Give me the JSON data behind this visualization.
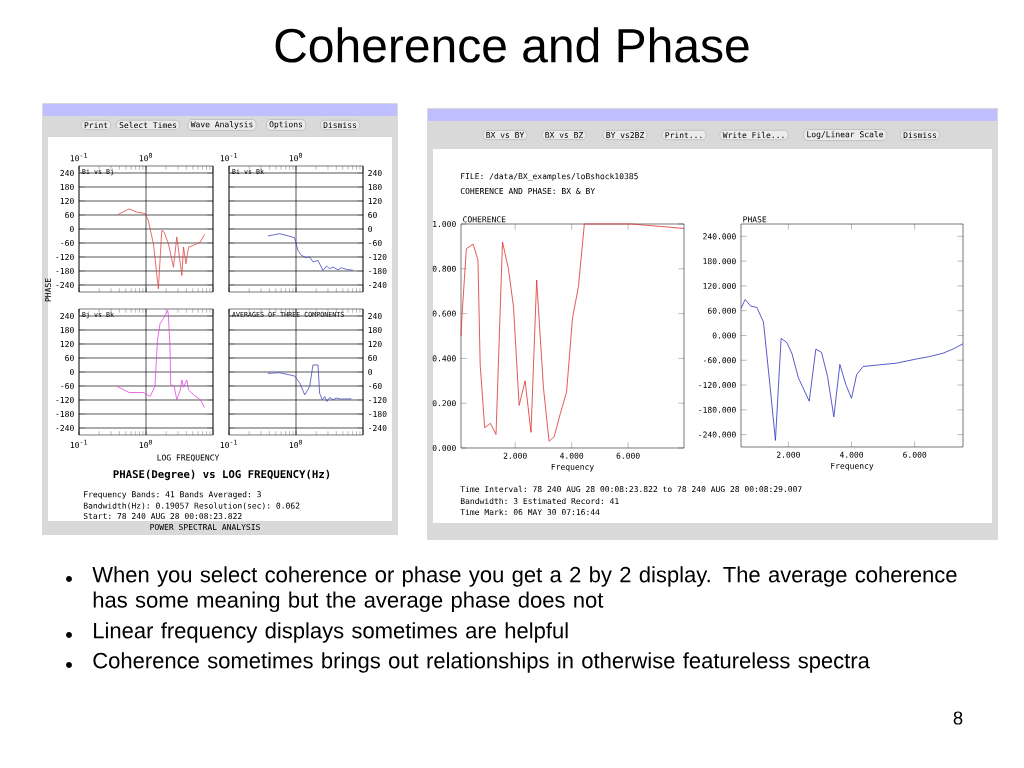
{
  "chart_data": [
    {
      "type": "line",
      "title": "Bi vs Bj",
      "log": "x",
      "grid": true,
      "color": "#e04848",
      "xlim": [
        0.1,
        10
      ],
      "ylim": [
        -270,
        270
      ],
      "xticks": [
        {
          "value": 0.1,
          "label": "10$^{-1}$"
        },
        {
          "value": 1,
          "label": "10$^{0}$"
        },
        {
          "value": 10,
          "label": null
        }
      ],
      "yticks": [
        -240,
        -180,
        -120,
        -60,
        0,
        60,
        120,
        180,
        240
      ],
      "x": [
        0.38,
        0.56,
        0.72,
        0.97,
        1.08,
        1.29,
        1.53,
        1.72,
        1.86,
        2.16,
        2.57,
        2.88,
        3.43,
        3.63,
        3.94,
        4.32,
        5.13,
        6.46,
        7.5
      ],
      "values": [
        62,
        86,
        73,
        66,
        37,
        -63,
        -256,
        -6,
        -13,
        -63,
        -164,
        -34,
        -199,
        -77,
        -149,
        -77,
        -70,
        -56,
        -23
      ]
    },
    {
      "type": "line",
      "title": "Bi vs Bk",
      "log": "x",
      "grid": true,
      "color": "#4848c0",
      "xlim": [
        0.1,
        10
      ],
      "ylim": [
        -270,
        270
      ],
      "xticks": [
        {
          "value": 0.1,
          "label": "10$^{-1}$"
        },
        {
          "value": 1,
          "label": "10$^{0}$"
        },
        {
          "value": 10,
          "label": null
        }
      ],
      "yticks": [
        -240,
        -180,
        -120,
        -60,
        0,
        60,
        120,
        180,
        240
      ],
      "x": [
        0.38,
        0.57,
        0.95,
        1.07,
        1.2,
        1.43,
        1.6,
        1.79,
        2.13,
        2.53,
        2.84,
        3.18,
        3.57,
        4.24,
        4.75,
        5.64,
        7.1
      ],
      "values": [
        -30,
        -20,
        -37,
        -92,
        -113,
        -123,
        -120,
        -141,
        -135,
        -178,
        -159,
        -170,
        -163,
        -175,
        -166,
        -173,
        -177
      ]
    },
    {
      "type": "line",
      "title": "Bj vs Bk",
      "log": "x",
      "grid": true,
      "color": "#e048e0",
      "xlim": [
        0.1,
        10
      ],
      "ylim": [
        -270,
        270
      ],
      "xticks": [
        {
          "value": 0.1,
          "label": "10$^{-1}$"
        },
        {
          "value": 1,
          "label": "10$^{0}$"
        },
        {
          "value": 10,
          "label": null
        }
      ],
      "yticks": [
        -240,
        -180,
        -120,
        -60,
        0,
        60,
        120,
        180,
        240
      ],
      "x": [
        0.37,
        0.56,
        0.91,
        1.15,
        1.36,
        1.48,
        1.62,
        1.82,
        2.11,
        2.16,
        2.29,
        2.34,
        2.63,
        2.88,
        3.24,
        3.43,
        3.63,
        4.07,
        4.32,
        5.13,
        6.46,
        7.5
      ],
      "values": [
        -62,
        -88,
        -88,
        -105,
        -62,
        136,
        207,
        229,
        264,
        243,
        94,
        -55,
        -60,
        -119,
        -77,
        -34,
        -65,
        -34,
        -77,
        -98,
        -119,
        -152
      ]
    },
    {
      "type": "line",
      "title": "AVERAGES OF THREE COMPONENTS",
      "log": "x",
      "grid": true,
      "color": "#4848c0",
      "xlim": [
        0.1,
        10
      ],
      "ylim": [
        -270,
        270
      ],
      "xticks": [
        {
          "value": 0.1,
          "label": "10$^{-1}$"
        },
        {
          "value": 1,
          "label": "10$^{0}$"
        },
        {
          "value": 10,
          "label": null
        }
      ],
      "yticks": [
        -240,
        -180,
        -120,
        -60,
        0,
        60,
        120,
        180,
        240
      ],
      "x": [
        0.38,
        0.57,
        0.95,
        1.14,
        1.35,
        1.6,
        1.79,
        2.13,
        2.25,
        2.47,
        2.68,
        2.9,
        3.18,
        3.57,
        4.0,
        4.75,
        6.7
      ],
      "values": [
        -6,
        -3,
        -17,
        -48,
        -98,
        -62,
        30,
        30,
        -91,
        -119,
        -105,
        -126,
        -109,
        -119,
        -112,
        -116,
        -115
      ]
    },
    {
      "type": "line",
      "title": "COHERENCE",
      "xlabel": "Frequency",
      "color": "#e03030",
      "xlim": [
        0.08,
        7.98
      ],
      "ylim": [
        0,
        1
      ],
      "xticks": [
        {
          "value": 2,
          "label": "2.000"
        },
        {
          "value": 4,
          "label": "4.000"
        },
        {
          "value": 6,
          "label": "6.000"
        }
      ],
      "yticks": [
        {
          "value": 0,
          "label": "0.000"
        },
        {
          "value": 0.2,
          "label": "0.200"
        },
        {
          "value": 0.4,
          "label": "0.400"
        },
        {
          "value": 0.6,
          "label": "0.600"
        },
        {
          "value": 0.8,
          "label": "0.800"
        },
        {
          "value": 1,
          "label": "1.000"
        }
      ],
      "x": [
        0.08,
        0.12,
        0.27,
        0.51,
        0.68,
        0.76,
        0.92,
        1.12,
        1.32,
        1.55,
        1.76,
        1.94,
        2.14,
        2.35,
        2.56,
        2.76,
        3.0,
        3.2,
        3.38,
        3.59,
        3.82,
        4.03,
        4.24,
        4.45,
        6.12,
        7.06,
        7.98
      ],
      "values": [
        0.5,
        0.6,
        0.89,
        0.91,
        0.84,
        0.37,
        0.09,
        0.11,
        0.06,
        0.92,
        0.8,
        0.63,
        0.19,
        0.3,
        0.07,
        0.75,
        0.27,
        0.03,
        0.05,
        0.15,
        0.25,
        0.58,
        0.72,
        1.0,
        1.0,
        0.99,
        0.98
      ]
    },
    {
      "type": "line",
      "title": "PHASE",
      "xlabel": "Frequency",
      "color": "#3030c0",
      "xlim": [
        0.5,
        7.53
      ],
      "ylim": [
        -270,
        270
      ],
      "xticks": [
        {
          "value": 2,
          "label": "2.000"
        },
        {
          "value": 4,
          "label": "4.000"
        },
        {
          "value": 6,
          "label": "6.000"
        }
      ],
      "yticks": [
        {
          "value": -240,
          "label": "-240.000"
        },
        {
          "value": -180,
          "label": "-180.000"
        },
        {
          "value": -120,
          "label": "-120.000"
        },
        {
          "value": -60,
          "label": "-60.000"
        },
        {
          "value": 0,
          "label": "0.000"
        },
        {
          "value": 60,
          "label": "60.000"
        },
        {
          "value": 120,
          "label": "120.000"
        },
        {
          "value": 180,
          "label": "180.000"
        },
        {
          "value": 240,
          "label": "240.000"
        }
      ],
      "x": [
        0.5,
        0.63,
        0.81,
        1.0,
        1.21,
        1.42,
        1.59,
        1.77,
        1.95,
        2.11,
        2.32,
        2.66,
        2.87,
        3.05,
        3.24,
        3.44,
        3.63,
        3.82,
        4.0,
        4.16,
        4.37,
        4.89,
        5.42,
        6.05,
        6.47,
        6.89,
        7.21,
        7.53
      ],
      "values": [
        66,
        87,
        71,
        68,
        33,
        -123,
        -254,
        -7,
        -17,
        -43,
        -103,
        -159,
        -33,
        -41,
        -99,
        -197,
        -70,
        -119,
        -152,
        -95,
        -75,
        -71,
        -67,
        -57,
        -51,
        -43,
        -33,
        -20
      ]
    },
    {
      "type": "other",
      "title": "Coherence and Phase",
      "annotations": [
        "When you select coherence or phase you get a 2 by 2 display.  The average coherence has some meaning but the average phase does not",
        "Linear frequency displays sometimes are helpful",
        "Coherence sometimes brings out relationships in otherwise featureless spectra",
        "8",
        "Print",
        "Select Times",
        "Wave Analysis",
        "Options",
        "Dismiss",
        "PHASE",
        "LOG FREQUENCY",
        "PHASE(Degree) vs LOG FREQUENCY(Hz)",
        "Frequency Bands: 41   Bands Averaged: 3",
        "Bandwidth(Hz): 0.19057  Resolution(sec): 0.062",
        "Start:  78 240 AUG 28  00:08:23.822",
        "POWER SPECTRAL ANALYSIS",
        "BX vs BY",
        "BX vs BZ",
        "BY vs2BZ",
        "Print...",
        "Write File...",
        "Log/Linear Scale",
        "Dismiss",
        "FILE: /data/BX_examples/loBshock10385",
        "COHERENCE AND PHASE: BX & BY",
        "Time Interval:  78 240 AUG 28  00:08:23.822 to  78 240 AUG 28  00:08:29.007",
        "Bandwidth: 3     Estimated Record: 41",
        "Time Mark: 06 MAY 30 07:16:44"
      ]
    }
  ]
}
